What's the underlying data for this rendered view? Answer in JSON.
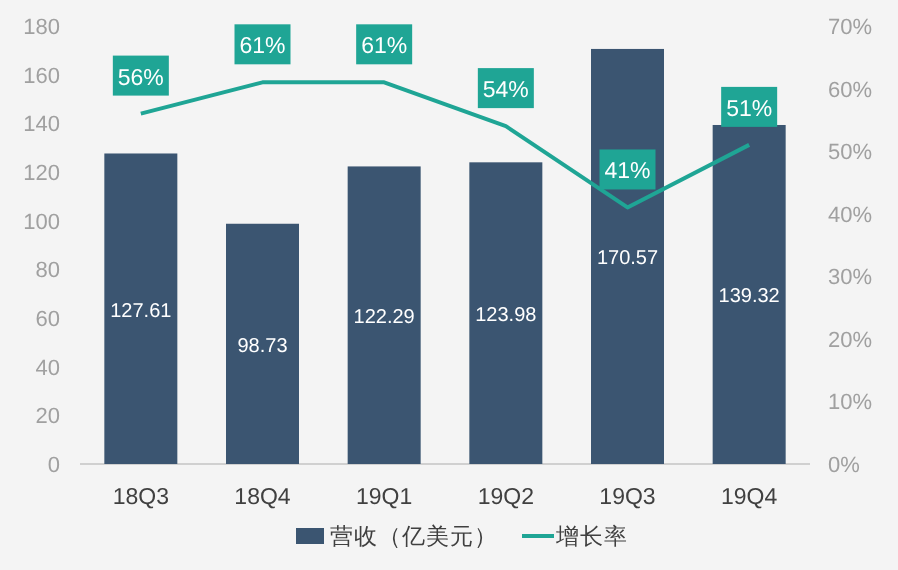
{
  "chart_data": {
    "type": "bar",
    "categories": [
      "18Q3",
      "18Q4",
      "19Q1",
      "19Q2",
      "19Q3",
      "19Q4"
    ],
    "series": [
      {
        "name": "营收（亿美元）",
        "color": "#3b5571",
        "values": [
          127.61,
          98.73,
          122.29,
          123.98,
          170.57,
          139.32
        ],
        "data_labels": true
      },
      {
        "name": "增长率",
        "type": "line",
        "axis": "y2",
        "color": "#1fa595",
        "values": [
          56,
          61,
          61,
          54,
          41,
          51
        ],
        "value_labels": [
          "56%",
          "61%",
          "61%",
          "54%",
          "41%",
          "51%"
        ]
      }
    ],
    "ylim": [
      0,
      180
    ],
    "yticks": [
      0,
      20,
      40,
      60,
      80,
      100,
      120,
      140,
      160,
      180
    ],
    "y2lim": [
      0,
      70
    ],
    "y2ticks": [
      {
        "value": 0,
        "label": "0%"
      },
      {
        "value": 10,
        "label": "10%"
      },
      {
        "value": 20,
        "label": "20%"
      },
      {
        "value": 30,
        "label": "30%"
      },
      {
        "value": 40,
        "label": "40%"
      },
      {
        "value": 50,
        "label": "50%"
      },
      {
        "value": 60,
        "label": "60%"
      },
      {
        "value": 70,
        "label": "70%"
      }
    ],
    "grid": false,
    "legend": "bottom",
    "marker": "none",
    "line_style": "solid"
  }
}
